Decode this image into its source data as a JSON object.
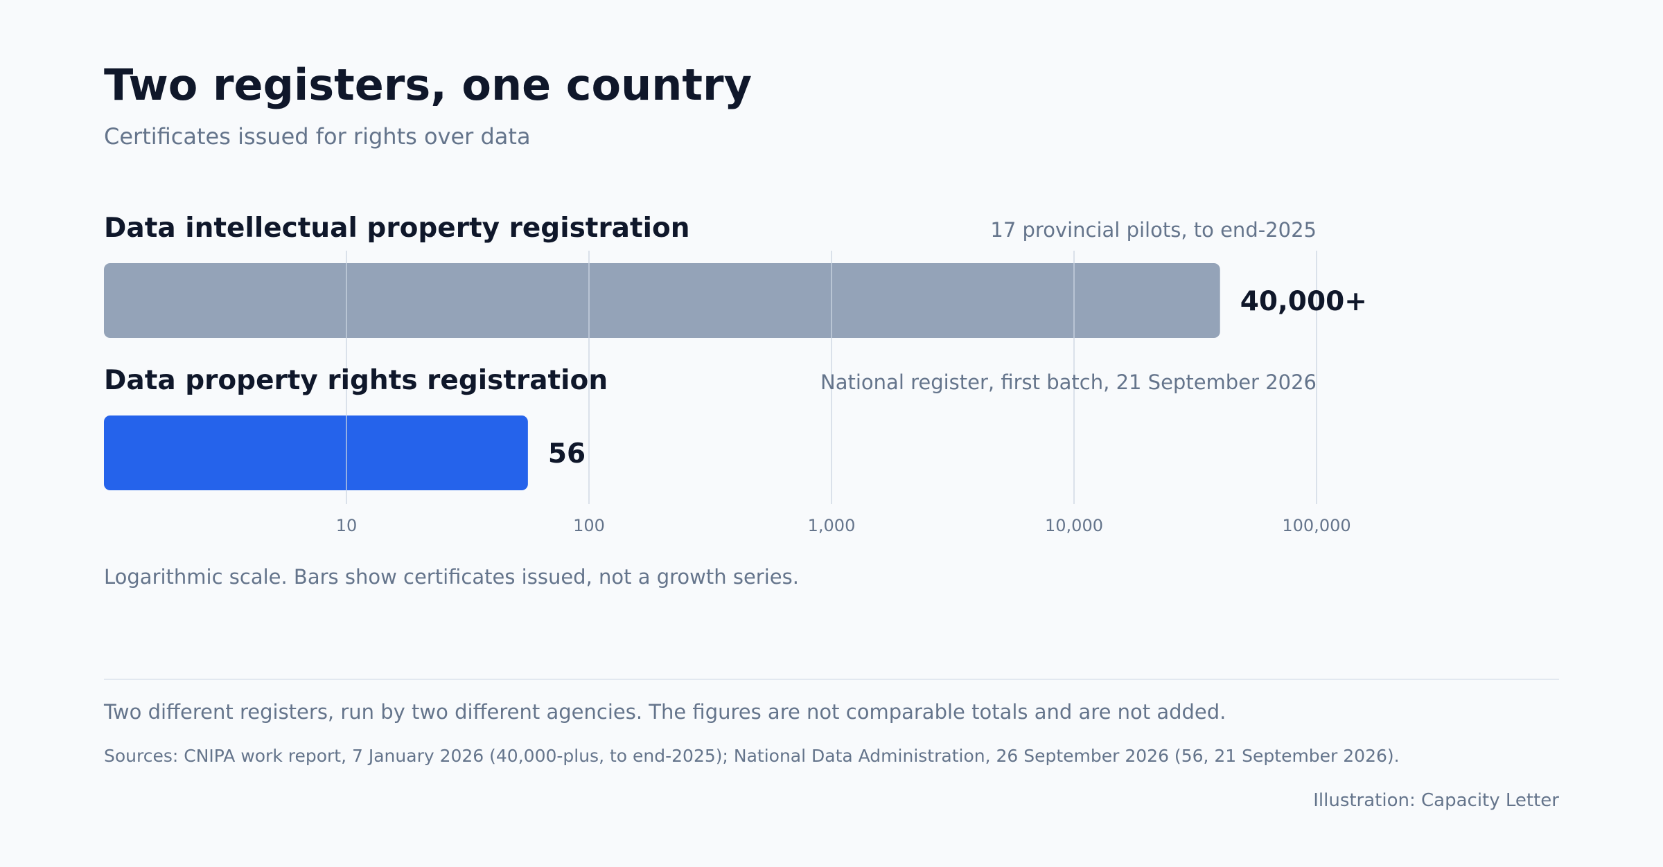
{
  "header": {
    "title": "Two registers, one country",
    "subtitle": "Certificates issued for rights over data"
  },
  "chart_data": {
    "type": "bar",
    "orientation": "horizontal",
    "scale": "log",
    "xlim": [
      1,
      100000
    ],
    "grid": true,
    "categories": [
      "Data intellectual property registration",
      "Data property rights registration"
    ],
    "values": [
      40000,
      56
    ],
    "value_labels": [
      "40,000+",
      "56"
    ],
    "notes": [
      "17 provincial pilots, to end-2025",
      "National register, first batch, 21 September 2026"
    ],
    "colors": [
      "#94a3b8",
      "#2563eb"
    ],
    "ticks": [
      10,
      100,
      1000,
      10000,
      100000
    ],
    "tick_labels": [
      "10",
      "100",
      "1,000",
      "10,000",
      "100,000"
    ]
  },
  "footer": {
    "axis_note": "Logarithmic scale. Bars show certificates issued, not a growth series.",
    "caption": "Two different registers, run by two different agencies. The figures are not comparable totals and are not added.",
    "sources": "Sources: CNIPA work report, 7 January 2026 (40,000-plus, to end-2025); National Data Administration, 26 September 2026 (56, 21 September 2026).",
    "credit": "Illustration: Capacity Letter"
  }
}
